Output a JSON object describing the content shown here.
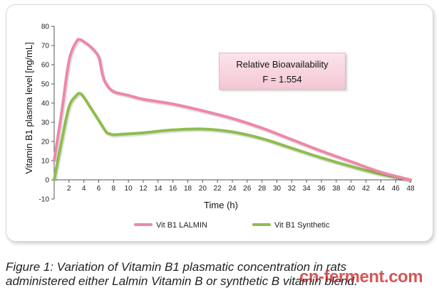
{
  "chart_data": {
    "type": "line",
    "title": "",
    "xlabel": "Time (h)",
    "ylabel": "Vitamin B1 plasma level [ng/mL]",
    "xlim": [
      0,
      48
    ],
    "ylim": [
      -10,
      80
    ],
    "xticks": [
      2,
      4,
      6,
      8,
      10,
      12,
      14,
      16,
      18,
      20,
      22,
      24,
      26,
      28,
      30,
      32,
      34,
      36,
      38,
      40,
      42,
      44,
      46,
      48
    ],
    "yticks": [
      -10,
      0,
      10,
      20,
      30,
      40,
      50,
      60,
      70,
      80
    ],
    "series": [
      {
        "name": "Vit B1 LALMIN",
        "color": "#ee87a8",
        "x": [
          0,
          1,
          2,
          3,
          3.5,
          4,
          5,
          6,
          6.5,
          7,
          8,
          10,
          12,
          16,
          20,
          24,
          28,
          32,
          36,
          40,
          44,
          48
        ],
        "y": [
          10,
          35,
          62,
          72,
          73,
          72,
          69,
          64,
          55,
          50,
          46,
          44,
          42,
          39.5,
          36,
          32,
          27,
          21,
          15,
          9.5,
          4,
          0
        ]
      },
      {
        "name": "Vit B1 Synthetic",
        "color": "#8fbd4d",
        "x": [
          0,
          1,
          2,
          3,
          3.5,
          4,
          5,
          6,
          7,
          7.5,
          8,
          10,
          12,
          16,
          20,
          24,
          28,
          32,
          36,
          40,
          44,
          48
        ],
        "y": [
          0,
          20,
          38,
          44,
          45,
          43,
          37,
          31,
          25,
          24,
          23.5,
          24,
          24.5,
          26,
          26.5,
          25,
          21.5,
          16.5,
          11.5,
          7,
          3,
          0
        ]
      }
    ],
    "annotation": {
      "title": "Relative  Bioavailability",
      "value": "F = 1.554"
    },
    "legend": "bottom"
  },
  "caption": {
    "line1": "Figure 1: Variation of Vitamin B1 plasmatic concentration in rats",
    "line2": "administered either Lalmin Vitamin B or synthetic B vitamin blend."
  },
  "watermark": "cn-ferment.com"
}
